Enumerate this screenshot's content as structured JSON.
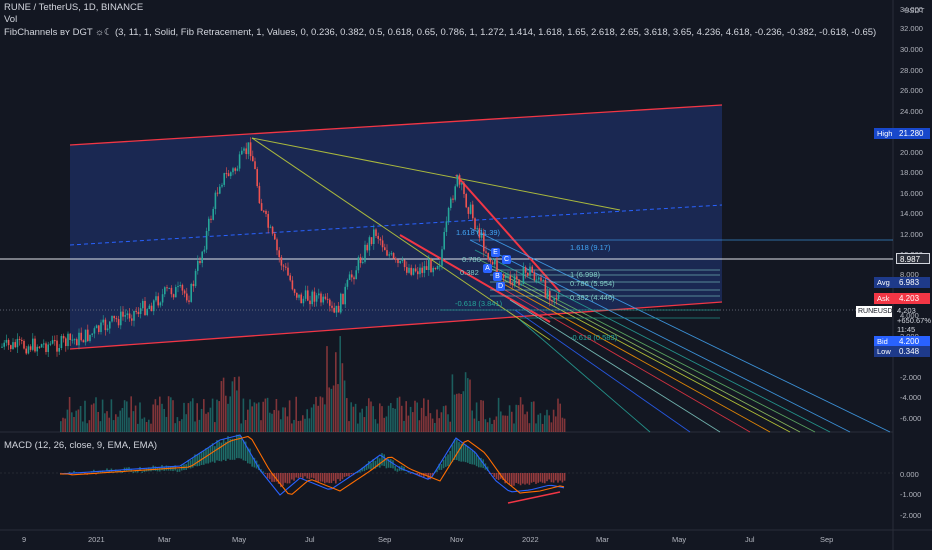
{
  "header": {
    "title": "RUNE / TetherUS, 1D, BINANCE",
    "volume_label": "Vol",
    "indicator": "FibChannels ʙʏ DGT ☼☾ (3, 11, 1, Solid, Fib Retracement, 1, Values, 0, 0.236, 0.382, 0.5, 0.618, 0.65, 0.786, 1, 1.272, 1.414, 1.618, 1.65, 2.618, 2.65, 3.618, 3.65, 4.236, 4.618, -0.236, -0.382, -0.618, -0.65)",
    "macd_label": "MACD (12, 26, close, 9, EMA, EMA)"
  },
  "price_axis": {
    "unit": "USDT",
    "labels": [
      "34.000",
      "32.000",
      "30.000",
      "28.000",
      "26.000",
      "24.000",
      "22.000",
      "20.000",
      "18.000",
      "16.000",
      "14.000",
      "12.000",
      "10.000",
      "8.000",
      "6.000",
      "4.000",
      "2.000",
      "-2.000",
      "-4.000",
      "-6.000"
    ],
    "macd_labels": [
      "0.000",
      "-1.000",
      "-2.000"
    ]
  },
  "price_badges": [
    {
      "tag": "High",
      "value": "21.280",
      "color": "#1848cc"
    },
    {
      "tag": "",
      "value": "8.987",
      "color": "#2a2e39"
    },
    {
      "tag": "Avg",
      "value": "6.983",
      "color": "#1e3a8a"
    },
    {
      "tag": "Ask",
      "value": "4.203",
      "color": "#f23645"
    },
    {
      "tag": "Bid",
      "value": "4.200",
      "color": "#2962ff"
    },
    {
      "tag": "Low",
      "value": "0.348",
      "color": "#1e3a8a"
    }
  ],
  "symbol_box": {
    "symbol": "RUNEUSDT",
    "price": "4.203",
    "change": "+650.67%",
    "countdown": "11:45"
  },
  "time_axis": [
    "9",
    "2021",
    "Mar",
    "May",
    "Jul",
    "Sep",
    "Nov",
    "2022",
    "Mar",
    "May",
    "Jul",
    "Sep"
  ],
  "fib_labels": {
    "upper": "1.618 (9.17)",
    "mid": "1.618 (11.39)",
    "lower": "-0.618 (3.841)",
    "bottom": "-0.618 (0.583)",
    "right_1": "1 (6.998)",
    "right_2": "0.786 (5.954)",
    "right_3": "0.382 (4.446)",
    "left_1": "0.786",
    "left_2": "0.382"
  },
  "wave_labels": [
    "E",
    "C",
    "A",
    "B",
    "D"
  ],
  "colors": {
    "background": "#131722",
    "channel_fill": "#1c2b5a",
    "channel_border": "#f23645",
    "up": "#26a69a",
    "down": "#ef5350",
    "macd": "#2962ff",
    "signal": "#ff6d00"
  }
}
